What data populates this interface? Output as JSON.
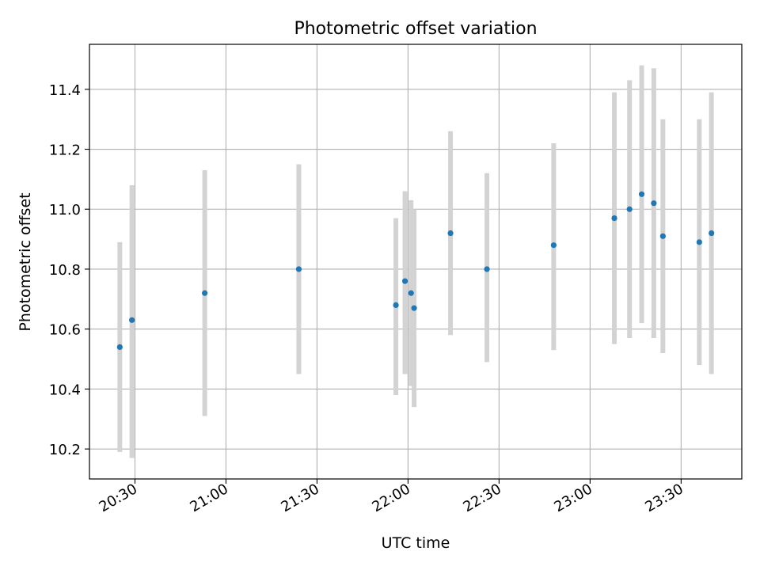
{
  "chart_data": {
    "type": "scatter",
    "title": "Photometric offset variation",
    "xlabel": "UTC time",
    "ylabel": "Photometric offset",
    "x_unit": "UTC time (HH:MM)",
    "xlim": [
      "20:15",
      "23:50"
    ],
    "ylim": [
      10.1,
      11.55
    ],
    "x_ticks": [
      "20:30",
      "21:00",
      "21:30",
      "22:00",
      "22:30",
      "23:00",
      "23:30"
    ],
    "y_ticks": [
      10.2,
      10.4,
      10.6,
      10.8,
      11.0,
      11.2,
      11.4
    ],
    "y_tick_labels": [
      "10.2",
      "10.4",
      "10.6",
      "10.8",
      "11.0",
      "11.2",
      "11.4"
    ],
    "grid": true,
    "marker_color": "#1f77b4",
    "errorbar_color": "#d3d3d3",
    "points": [
      {
        "time": "20:25",
        "y": 10.54,
        "lo": 10.19,
        "hi": 10.89
      },
      {
        "time": "20:29",
        "y": 10.63,
        "lo": 10.17,
        "hi": 11.08
      },
      {
        "time": "20:53",
        "y": 10.72,
        "lo": 10.31,
        "hi": 11.13
      },
      {
        "time": "21:24",
        "y": 10.8,
        "lo": 10.45,
        "hi": 11.15
      },
      {
        "time": "21:56",
        "y": 10.68,
        "lo": 10.38,
        "hi": 10.97
      },
      {
        "time": "21:59",
        "y": 10.76,
        "lo": 10.45,
        "hi": 11.06
      },
      {
        "time": "22:01",
        "y": 10.72,
        "lo": 10.41,
        "hi": 11.03
      },
      {
        "time": "22:02",
        "y": 10.67,
        "lo": 10.34,
        "hi": 11.0
      },
      {
        "time": "22:14",
        "y": 10.92,
        "lo": 10.58,
        "hi": 11.26
      },
      {
        "time": "22:26",
        "y": 10.8,
        "lo": 10.49,
        "hi": 11.12
      },
      {
        "time": "22:48",
        "y": 10.88,
        "lo": 10.53,
        "hi": 11.22
      },
      {
        "time": "23:08",
        "y": 10.97,
        "lo": 10.55,
        "hi": 11.39
      },
      {
        "time": "23:13",
        "y": 11.0,
        "lo": 10.57,
        "hi": 11.43
      },
      {
        "time": "23:17",
        "y": 11.05,
        "lo": 10.62,
        "hi": 11.48
      },
      {
        "time": "23:21",
        "y": 11.02,
        "lo": 10.57,
        "hi": 11.47
      },
      {
        "time": "23:24",
        "y": 10.91,
        "lo": 10.52,
        "hi": 11.3
      },
      {
        "time": "23:36",
        "y": 10.89,
        "lo": 10.48,
        "hi": 11.3
      },
      {
        "time": "23:40",
        "y": 10.92,
        "lo": 10.45,
        "hi": 11.39
      }
    ]
  }
}
